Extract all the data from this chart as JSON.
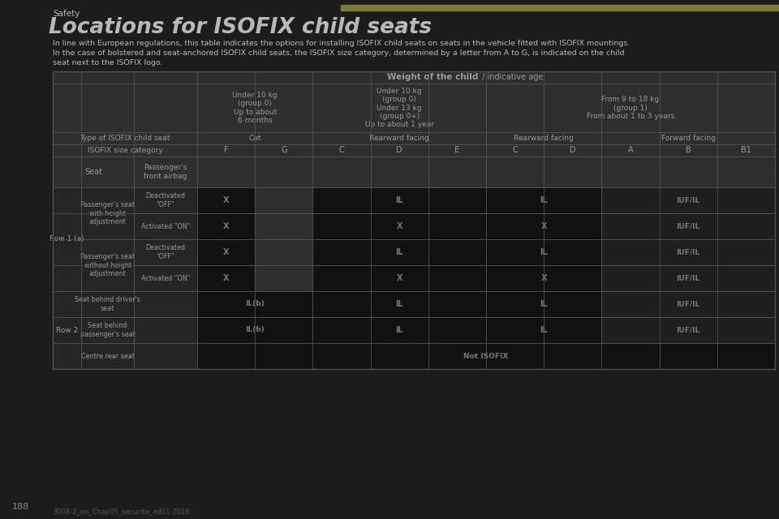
{
  "title": "Locations for ISOFIX child seats",
  "subtitle": "Safety",
  "accent_color": "#7a7a3a",
  "bg_color": "#1c1c1c",
  "text_color": "#b8b8b8",
  "description_line1": "In line with European regulations, this table indicates the options for installing ISOFIX child seats on seats in the vehicle fitted with ISOFIX mountings.",
  "description_line2": "In the case of bolstered and seat-anchored ISOFIX child seats, the ISOFIX size category, determined by a letter from A to G, is indicated on the child",
  "description_line3": "seat next to the ISOFIX logo.",
  "table_header_bg": "#2e2e2e",
  "table_cell_dark": "#111111",
  "table_cell_mid": "#1e1e1e",
  "table_cell_light": "#252525",
  "table_border": "#505050",
  "cell_text_color": "#999999",
  "cell_text_dark": "#777777",
  "size_cats": [
    "F",
    "G",
    "C",
    "D",
    "E",
    "C",
    "D",
    "A",
    "B",
    "B1"
  ],
  "col_group1_label": "Under 10 kg\n(group 0)\nUp to about\n6 months",
  "col_group2_label": "Under 10 kg\n(group 0)\nUnder 13 kg\n(group 0+)\nUp to about 1 year",
  "col_group3_label": "From 9 to 18 kg\n(group 1)\nFrom about 1 to 3 years",
  "page_number": "188",
  "footer_text": "3008-2_en_Chap05_securite_ed01-2016"
}
